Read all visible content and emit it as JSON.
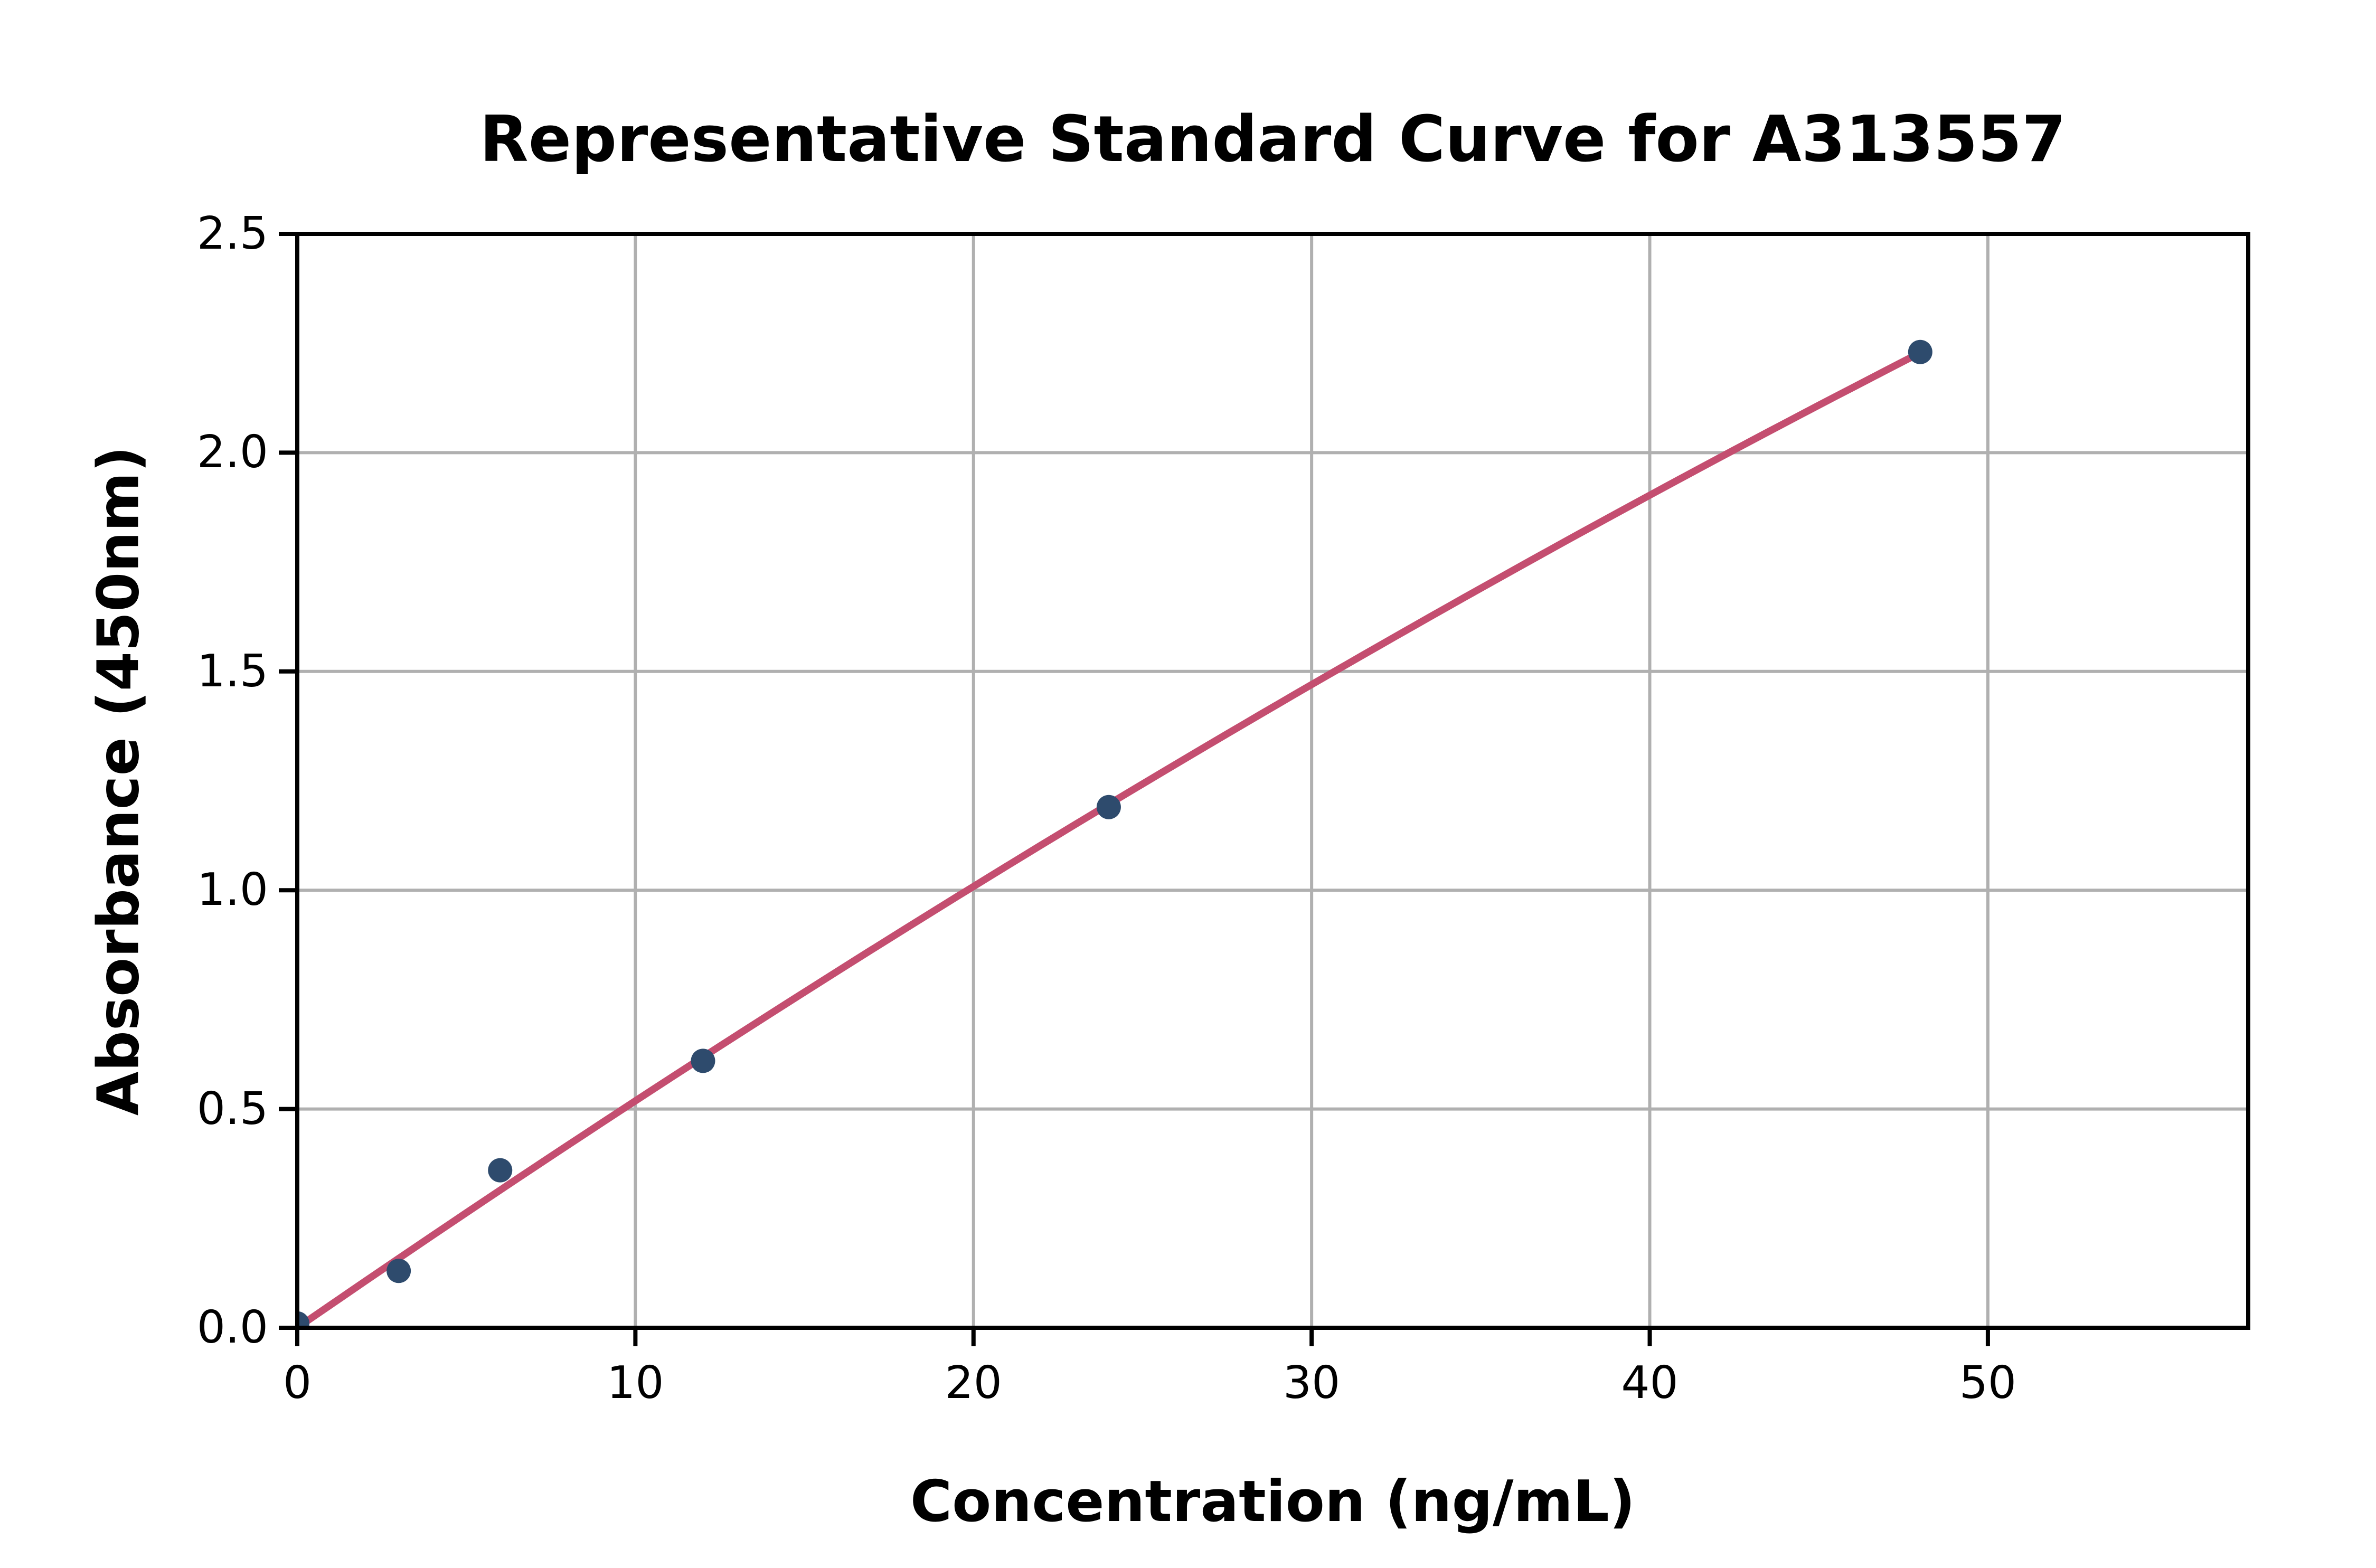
{
  "title": "Representative Standard Curve for A313557",
  "chart_data": {
    "type": "scatter",
    "title": "Representative Standard Curve for A313557",
    "xlabel": "Concentration (ng/mL)",
    "ylabel": "Absorbance (450nm)",
    "xlim": [
      0,
      57.7
    ],
    "ylim": [
      0,
      2.5
    ],
    "x_ticks": [
      0,
      10,
      20,
      30,
      40,
      50
    ],
    "y_ticks": [
      0.0,
      0.5,
      1.0,
      1.5,
      2.0,
      2.5
    ],
    "grid": true,
    "legend": false,
    "series": [
      {
        "name": "standard-points",
        "type": "scatter",
        "x": [
          0,
          3,
          6,
          12,
          24,
          48
        ],
        "y": [
          0.01,
          0.13,
          0.36,
          0.61,
          1.19,
          2.23
        ]
      },
      {
        "name": "fit-curve",
        "type": "line",
        "fit": "quadratic",
        "coeff_linear": 0.053289,
        "coeff_quadratic": -0.000143,
        "x_range": [
          0,
          48
        ]
      }
    ],
    "colors": {
      "marker": "#2e4b6d",
      "line": "#c44e70",
      "grid": "#b0b0b0",
      "spine": "#000000",
      "background": "#ffffff"
    }
  }
}
